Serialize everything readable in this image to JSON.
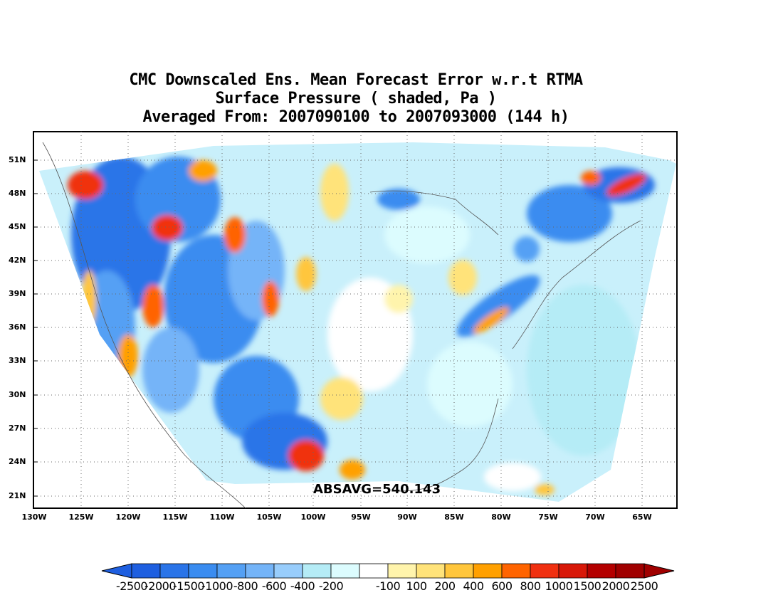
{
  "title": {
    "line1": "CMC Downscaled Ens. Mean Forecast Error w.r.t RTMA",
    "line2": "Surface Pressure ( shaded, Pa )",
    "line3": "Averaged From: 2007090100 to 2007093000 (144 h)"
  },
  "map": {
    "lat_labels": [
      "51N",
      "48N",
      "45N",
      "42N",
      "39N",
      "36N",
      "33N",
      "30N",
      "27N",
      "24N",
      "21N"
    ],
    "lon_labels": [
      "130W",
      "125W",
      "120W",
      "115W",
      "110W",
      "105W",
      "100W",
      "95W",
      "90W",
      "85W",
      "80W",
      "75W",
      "70W",
      "65W"
    ],
    "annotation": "ABSAVG=540.143",
    "grid": true,
    "grid_style": "dotted"
  },
  "colorbar": {
    "labels": [
      "-2500",
      "-2000",
      "-1500",
      "-1000",
      "-800",
      "-600",
      "-400",
      "-200",
      "-100",
      "100",
      "200",
      "400",
      "600",
      "800",
      "1000",
      "1500",
      "2000",
      "2500"
    ],
    "colors": [
      "#1e5fe0",
      "#2a74e8",
      "#3a8cf0",
      "#54a0f4",
      "#74b4f8",
      "#98cdfc",
      "#b5ecf6",
      "#dcfcfe",
      "#ffffff",
      "#fff4ac",
      "#ffe37a",
      "#ffc63c",
      "#ffa000",
      "#ff6400",
      "#f03010",
      "#d81808",
      "#b40000",
      "#a00000"
    ]
  }
}
